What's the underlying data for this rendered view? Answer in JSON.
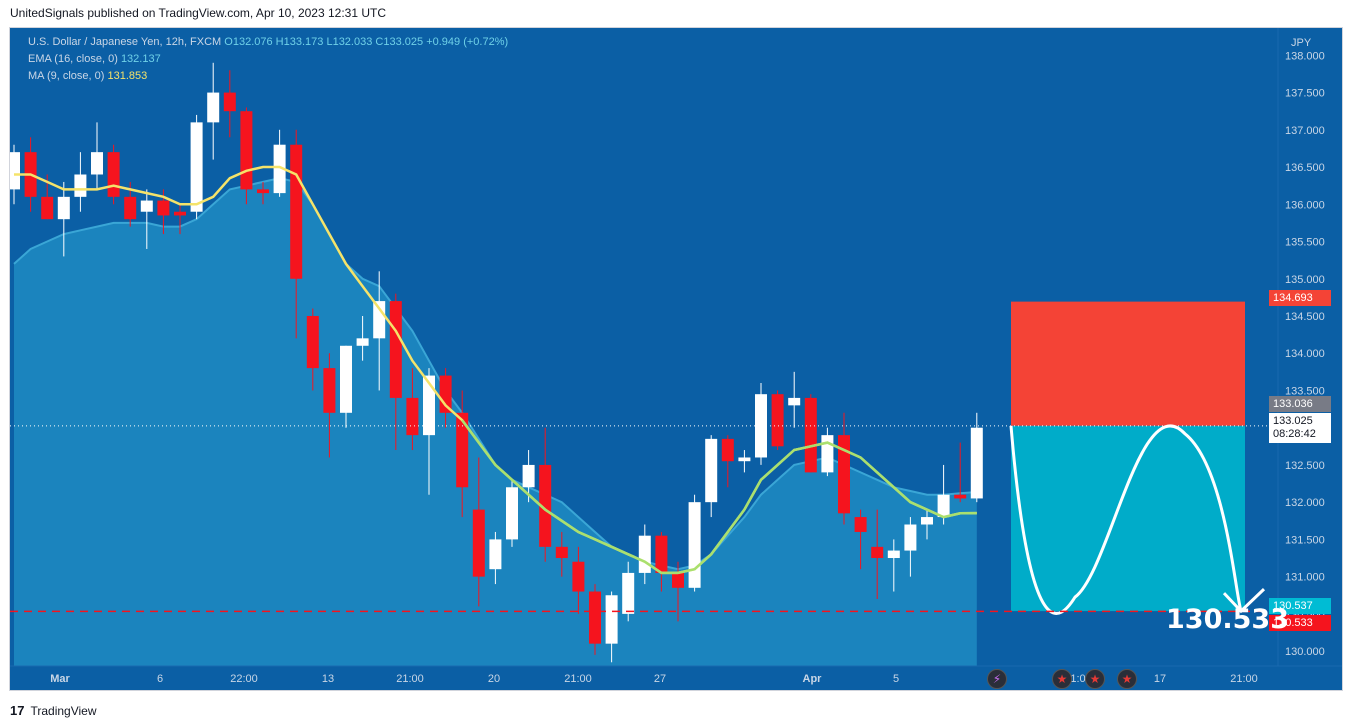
{
  "header": {
    "published": "UnitedSignals published on TradingView.com, Apr 10, 2023 12:31 UTC"
  },
  "legend": {
    "symbol": "U.S. Dollar / Japanese Yen, 12h, FXCM",
    "o": "O132.076",
    "h": "H133.173",
    "l": "L132.033",
    "c": "C133.025",
    "change": "+0.949 (+0.72%)",
    "ema_label": "EMA (16, close, 0)",
    "ema_value": "132.137",
    "ma_label": "MA (9, close, 0)",
    "ma_value": "131.853"
  },
  "price_labels": {
    "stop": "134.693",
    "last_high": "133.036",
    "last": "133.025",
    "countdown": "08:28:42",
    "target_a": "130.537",
    "target_b": "130.533"
  },
  "target_big": "130.533",
  "footer": {
    "brand": "TradingView"
  },
  "colors": {
    "up": "#ffffff",
    "down": "#f5141e",
    "bg": "#0b5fa5",
    "band": "#1f8bc2",
    "ma": "#f5e36a",
    "ema": "#a9e06f",
    "stop_zone": "#f44336",
    "target_zone": "#00acc9"
  },
  "chart_data": {
    "type": "candlestick",
    "title": "U.S. Dollar / Japanese Yen, 12h, FXCM",
    "ylabel": "JPY",
    "ylim": [
      129.8,
      138.3
    ],
    "y_ticks": [
      "130.000",
      "130.500",
      "131.000",
      "131.500",
      "132.000",
      "132.500",
      "133.000",
      "133.500",
      "134.000",
      "134.500",
      "135.000",
      "135.500",
      "136.000",
      "136.500",
      "137.000",
      "137.500",
      "138.000"
    ],
    "x_ticks": [
      "Mar",
      "6",
      "22:00",
      "13",
      "21:00",
      "20",
      "21:00",
      "27",
      "Apr",
      "5",
      "10",
      "21:00",
      "17",
      "21:00"
    ],
    "candles": [
      {
        "o": 136.2,
        "h": 136.8,
        "l": 136.0,
        "c": 136.7
      },
      {
        "o": 136.7,
        "h": 136.9,
        "l": 135.9,
        "c": 136.1
      },
      {
        "o": 136.1,
        "h": 136.4,
        "l": 135.8,
        "c": 135.8
      },
      {
        "o": 135.8,
        "h": 136.3,
        "l": 135.3,
        "c": 136.1
      },
      {
        "o": 136.1,
        "h": 136.7,
        "l": 135.9,
        "c": 136.4
      },
      {
        "o": 136.4,
        "h": 137.1,
        "l": 136.2,
        "c": 136.7
      },
      {
        "o": 136.7,
        "h": 136.8,
        "l": 136.0,
        "c": 136.1
      },
      {
        "o": 136.1,
        "h": 136.3,
        "l": 135.7,
        "c": 135.8
      },
      {
        "o": 135.9,
        "h": 136.2,
        "l": 135.4,
        "c": 136.05
      },
      {
        "o": 136.05,
        "h": 136.2,
        "l": 135.6,
        "c": 135.85
      },
      {
        "o": 135.9,
        "h": 136.0,
        "l": 135.6,
        "c": 135.85
      },
      {
        "o": 135.9,
        "h": 137.2,
        "l": 135.8,
        "c": 137.1
      },
      {
        "o": 137.1,
        "h": 137.9,
        "l": 136.6,
        "c": 137.5
      },
      {
        "o": 137.5,
        "h": 137.8,
        "l": 136.9,
        "c": 137.25
      },
      {
        "o": 137.25,
        "h": 137.3,
        "l": 136.0,
        "c": 136.2
      },
      {
        "o": 136.2,
        "h": 136.3,
        "l": 136.0,
        "c": 136.15
      },
      {
        "o": 136.15,
        "h": 137.0,
        "l": 136.1,
        "c": 136.8
      },
      {
        "o": 136.8,
        "h": 137.0,
        "l": 134.2,
        "c": 135.0
      },
      {
        "o": 134.5,
        "h": 134.6,
        "l": 133.5,
        "c": 133.8
      },
      {
        "o": 133.8,
        "h": 134.0,
        "l": 132.6,
        "c": 133.2
      },
      {
        "o": 133.2,
        "h": 134.1,
        "l": 133.0,
        "c": 134.1
      },
      {
        "o": 134.1,
        "h": 134.5,
        "l": 133.9,
        "c": 134.2
      },
      {
        "o": 134.2,
        "h": 135.1,
        "l": 133.5,
        "c": 134.7
      },
      {
        "o": 134.7,
        "h": 134.8,
        "l": 132.7,
        "c": 133.4
      },
      {
        "o": 133.4,
        "h": 133.8,
        "l": 132.7,
        "c": 132.9
      },
      {
        "o": 132.9,
        "h": 133.8,
        "l": 132.1,
        "c": 133.7
      },
      {
        "o": 133.7,
        "h": 133.8,
        "l": 133.0,
        "c": 133.2
      },
      {
        "o": 133.2,
        "h": 133.5,
        "l": 131.8,
        "c": 132.2
      },
      {
        "o": 131.9,
        "h": 132.6,
        "l": 130.6,
        "c": 131.0
      },
      {
        "o": 131.1,
        "h": 131.6,
        "l": 130.9,
        "c": 131.5
      },
      {
        "o": 131.5,
        "h": 132.3,
        "l": 131.4,
        "c": 132.2
      },
      {
        "o": 132.2,
        "h": 132.7,
        "l": 132.0,
        "c": 132.5
      },
      {
        "o": 132.5,
        "h": 133.0,
        "l": 131.2,
        "c": 131.4
      },
      {
        "o": 131.4,
        "h": 131.6,
        "l": 131.0,
        "c": 131.25
      },
      {
        "o": 131.2,
        "h": 131.4,
        "l": 130.5,
        "c": 130.8
      },
      {
        "o": 130.8,
        "h": 130.9,
        "l": 129.95,
        "c": 130.1
      },
      {
        "o": 130.1,
        "h": 130.8,
        "l": 129.85,
        "c": 130.75
      },
      {
        "o": 130.5,
        "h": 131.2,
        "l": 130.4,
        "c": 131.05
      },
      {
        "o": 131.05,
        "h": 131.7,
        "l": 130.9,
        "c": 131.55
      },
      {
        "o": 131.55,
        "h": 131.6,
        "l": 130.8,
        "c": 131.05
      },
      {
        "o": 131.05,
        "h": 131.2,
        "l": 130.4,
        "c": 130.85
      },
      {
        "o": 130.85,
        "h": 132.1,
        "l": 130.8,
        "c": 132.0
      },
      {
        "o": 132.0,
        "h": 132.9,
        "l": 131.8,
        "c": 132.85
      },
      {
        "o": 132.85,
        "h": 132.9,
        "l": 132.2,
        "c": 132.55
      },
      {
        "o": 132.55,
        "h": 132.7,
        "l": 132.4,
        "c": 132.6
      },
      {
        "o": 132.6,
        "h": 133.6,
        "l": 132.5,
        "c": 133.45
      },
      {
        "o": 133.45,
        "h": 133.5,
        "l": 132.7,
        "c": 132.75
      },
      {
        "o": 133.3,
        "h": 133.75,
        "l": 133.0,
        "c": 133.4
      },
      {
        "o": 133.4,
        "h": 133.45,
        "l": 132.4,
        "c": 132.4
      },
      {
        "o": 132.4,
        "h": 133.0,
        "l": 132.35,
        "c": 132.9
      },
      {
        "o": 132.9,
        "h": 133.2,
        "l": 131.7,
        "c": 131.85
      },
      {
        "o": 131.8,
        "h": 131.9,
        "l": 131.1,
        "c": 131.6
      },
      {
        "o": 131.4,
        "h": 131.9,
        "l": 130.7,
        "c": 131.25
      },
      {
        "o": 131.25,
        "h": 131.5,
        "l": 130.8,
        "c": 131.35
      },
      {
        "o": 131.35,
        "h": 131.8,
        "l": 131.0,
        "c": 131.7
      },
      {
        "o": 131.7,
        "h": 131.9,
        "l": 131.5,
        "c": 131.8
      },
      {
        "o": 131.8,
        "h": 132.5,
        "l": 131.7,
        "c": 132.1
      },
      {
        "o": 132.1,
        "h": 132.8,
        "l": 132.0,
        "c": 132.05
      },
      {
        "o": 132.05,
        "h": 133.2,
        "l": 132.0,
        "c": 133.0
      }
    ],
    "ma": [
      136.4,
      136.4,
      136.3,
      136.2,
      136.2,
      136.2,
      136.25,
      136.2,
      136.15,
      136.1,
      136.0,
      136.0,
      136.1,
      136.35,
      136.45,
      136.5,
      136.5,
      136.4,
      136.0,
      135.6,
      135.2,
      134.9,
      134.6,
      134.3,
      133.9,
      133.6,
      133.3,
      133.1,
      132.8,
      132.5,
      132.3,
      132.1,
      131.9,
      131.75,
      131.6,
      131.5,
      131.4,
      131.3,
      131.2,
      131.05,
      131.05,
      131.1,
      131.3,
      131.6,
      131.9,
      132.3,
      132.5,
      132.7,
      132.75,
      132.8,
      132.7,
      132.6,
      132.4,
      132.2,
      132.0,
      131.9,
      131.8,
      131.85,
      131.853
    ],
    "ema": [
      135.2,
      135.4,
      135.5,
      135.6,
      135.65,
      135.7,
      135.75,
      135.75,
      135.75,
      135.7,
      135.7,
      135.8,
      136.0,
      136.2,
      136.25,
      136.3,
      136.35,
      136.3,
      136.0,
      135.6,
      135.2,
      135.0,
      134.9,
      134.6,
      134.3,
      133.9,
      133.5,
      133.2,
      132.85,
      132.5,
      132.3,
      132.2,
      132.1,
      132.0,
      131.8,
      131.6,
      131.4,
      131.3,
      131.2,
      131.15,
      131.1,
      131.15,
      131.3,
      131.55,
      131.8,
      132.1,
      132.3,
      132.5,
      132.55,
      132.6,
      132.5,
      132.4,
      132.3,
      132.2,
      132.15,
      132.1,
      132.1,
      132.12,
      132.137
    ],
    "last_price": 133.025,
    "target_line": 130.533,
    "position": {
      "entry": 133.025,
      "stop": 134.693,
      "target": 130.537
    }
  }
}
